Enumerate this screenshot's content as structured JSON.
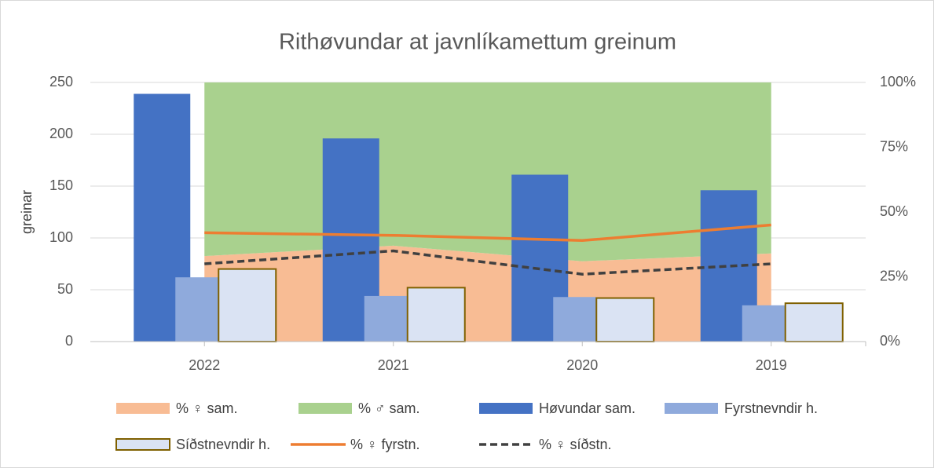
{
  "chart_data": {
    "type": "combo",
    "title": "Rithøvundar at javnlíkamettum greinum",
    "ylabel": "greinar",
    "categories": [
      "2022",
      "2021",
      "2020",
      "2019"
    ],
    "ylim": [
      0,
      250
    ],
    "yticks": [
      0,
      50,
      100,
      150,
      200,
      250
    ],
    "y2lim": [
      0,
      100
    ],
    "y2ticks": [
      {
        "value": 0,
        "label": "0%"
      },
      {
        "value": 25,
        "label": "25%"
      },
      {
        "value": 50,
        "label": "50%"
      },
      {
        "value": 75,
        "label": "75%"
      },
      {
        "value": 100,
        "label": "100%"
      }
    ],
    "grid": true,
    "legend": "bottom",
    "series": [
      {
        "name": "% ♀ sam.",
        "type": "area",
        "axis": "y2",
        "stacked": true,
        "color": "#f8bc94",
        "values": [
          33,
          37,
          31,
          34
        ]
      },
      {
        "name": "% ♂ sam.",
        "type": "area",
        "axis": "y2",
        "stacked": true,
        "color": "#a9d18e",
        "values": [
          67,
          63,
          69,
          66
        ]
      },
      {
        "name": "Høvundar sam.",
        "type": "bar",
        "color": "#4472c4",
        "values": [
          239,
          196,
          161,
          146
        ]
      },
      {
        "name": "Fyrstnevndir h.",
        "type": "bar",
        "color": "#8faadc",
        "values": [
          62,
          44,
          43,
          35
        ]
      },
      {
        "name": "Síðstnevndir h.",
        "type": "bar",
        "color": "#dae3f3",
        "edgecolor": "#7f6000",
        "values": [
          70,
          52,
          42,
          37
        ]
      },
      {
        "name": "% ♀ fyrstn.",
        "type": "line",
        "axis": "y2",
        "color": "#ed7d31",
        "values": [
          42,
          41,
          39,
          45
        ]
      },
      {
        "name": "% ♀ síðstn.",
        "type": "line",
        "axis": "y2",
        "dashed": true,
        "color": "#404040",
        "values": [
          30,
          35,
          26,
          30
        ]
      }
    ]
  }
}
